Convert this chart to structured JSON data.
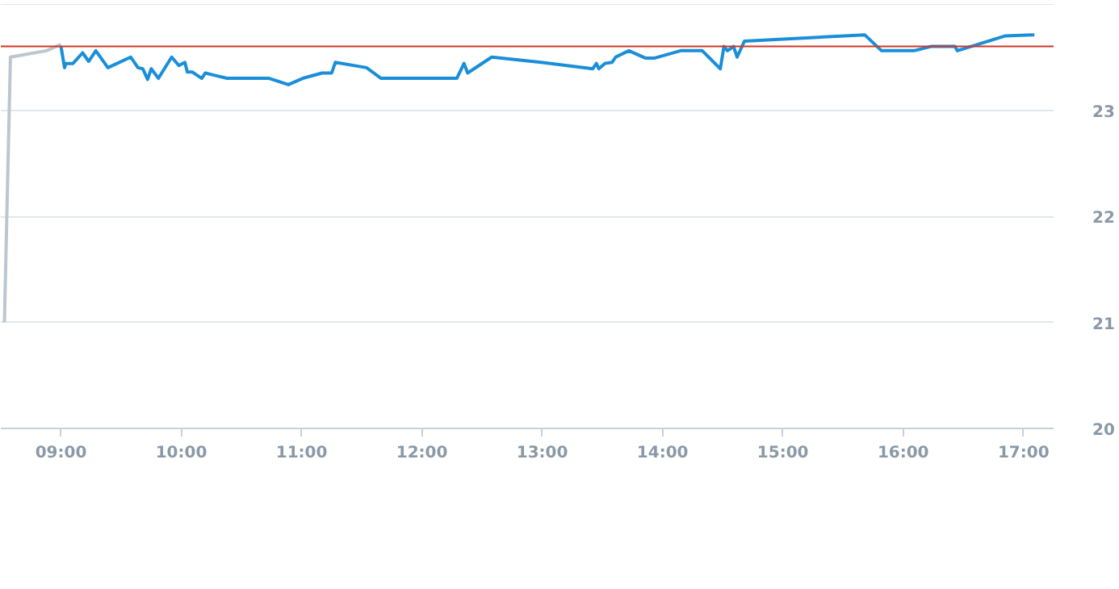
{
  "chart_data": {
    "type": "line",
    "xlim": [
      8.5,
      17.25
    ],
    "ylim": [
      20,
      24
    ],
    "xticks": [
      {
        "value": 9,
        "label": "09:00"
      },
      {
        "value": 10,
        "label": "10:00"
      },
      {
        "value": 11,
        "label": "11:00"
      },
      {
        "value": 12,
        "label": "12:00"
      },
      {
        "value": 13,
        "label": "13:00"
      },
      {
        "value": 14,
        "label": "14:00"
      },
      {
        "value": 15,
        "label": "15:00"
      },
      {
        "value": 16,
        "label": "16:00"
      },
      {
        "value": 17,
        "label": "17:00"
      }
    ],
    "yticks": [
      20,
      21,
      22,
      23
    ],
    "grid": "y",
    "ref_lines": [
      {
        "axis": "y",
        "value": 23.6,
        "color": "#d0362b"
      }
    ],
    "series": [
      {
        "color": "#bcc6cf",
        "x": [
          8.53,
          8.58,
          8.88,
          9.0
        ],
        "values": [
          21.0,
          23.5,
          23.56,
          23.62
        ]
      },
      {
        "color": "#1a8fd8",
        "x": [
          9.0,
          9.03,
          9.04,
          9.1,
          9.18,
          9.23,
          9.29,
          9.39,
          9.58,
          9.64,
          9.68,
          9.72,
          9.75,
          9.81,
          9.92,
          9.98,
          10.03,
          10.05,
          10.09,
          10.17,
          10.2,
          10.27,
          10.38,
          10.73,
          10.89,
          11.01,
          11.17,
          11.25,
          11.28,
          11.54,
          11.66,
          12.29,
          12.35,
          12.38,
          12.58,
          12.99,
          13.42,
          13.45,
          13.47,
          13.52,
          13.58,
          13.61,
          13.72,
          13.86,
          13.93,
          14.15,
          14.33,
          14.48,
          14.51,
          14.54,
          14.59,
          14.62,
          14.68,
          15.68,
          15.82,
          16.09,
          16.23,
          16.43,
          16.45,
          16.85,
          17.09
        ],
        "values": [
          23.6,
          23.4,
          23.44,
          23.44,
          23.54,
          23.46,
          23.56,
          23.4,
          23.5,
          23.4,
          23.39,
          23.29,
          23.39,
          23.3,
          23.5,
          23.42,
          23.45,
          23.36,
          23.36,
          23.3,
          23.35,
          23.33,
          23.3,
          23.3,
          23.24,
          23.3,
          23.35,
          23.35,
          23.45,
          23.4,
          23.3,
          23.3,
          23.44,
          23.35,
          23.5,
          23.45,
          23.39,
          23.44,
          23.39,
          23.44,
          23.45,
          23.5,
          23.56,
          23.49,
          23.49,
          23.56,
          23.56,
          23.39,
          23.6,
          23.56,
          23.6,
          23.5,
          23.65,
          23.71,
          23.56,
          23.56,
          23.6,
          23.6,
          23.56,
          23.7,
          23.71
        ]
      }
    ]
  }
}
